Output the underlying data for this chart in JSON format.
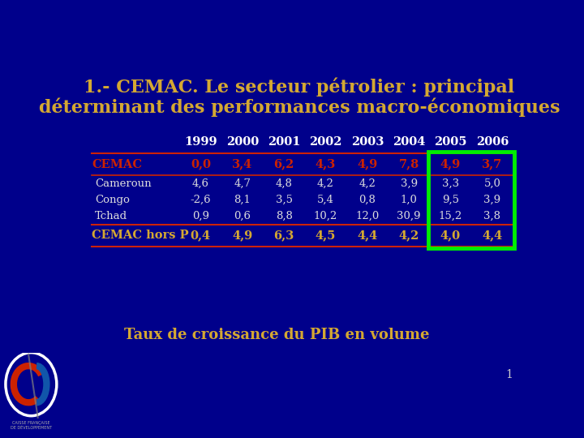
{
  "title_line1": "1.- CEMAC. Le secteur pétrolier : principal",
  "title_line2": "déterminant des performances macro-économiques",
  "title_color": "#D4A832",
  "bg_color": "#00008B",
  "subtitle": "Taux de croissance du PIB en volume",
  "subtitle_color": "#D4A832",
  "page_number": "1",
  "columns": [
    "",
    "1999",
    "2000",
    "2001",
    "2002",
    "2003",
    "2004",
    "2005",
    "2006"
  ],
  "rows": [
    {
      "label": "CEMAC",
      "values": [
        "0,0",
        "3,4",
        "6,2",
        "4,3",
        "4,9",
        "7,8",
        "4,9",
        "3,7"
      ],
      "label_color": "#CC2200",
      "value_color": "#CC2200",
      "bold": true,
      "sub": false
    },
    {
      "label": "Cameroun",
      "values": [
        "4,6",
        "4,7",
        "4,8",
        "4,2",
        "4,2",
        "3,9",
        "3,3",
        "5,0"
      ],
      "label_color": "#DDDDDD",
      "value_color": "#DDDDDD",
      "bold": false,
      "sub": true
    },
    {
      "label": "Congo",
      "values": [
        "-2,6",
        "8,1",
        "3,5",
        "5,4",
        "0,8",
        "1,0",
        "9,5",
        "3,9"
      ],
      "label_color": "#DDDDDD",
      "value_color": "#DDDDDD",
      "bold": false,
      "sub": true
    },
    {
      "label": "Tchad",
      "values": [
        "0,9",
        "0,6",
        "8,8",
        "10,2",
        "12,0",
        "30,9",
        "15,2",
        "3,8"
      ],
      "label_color": "#DDDDDD",
      "value_color": "#DDDDDD",
      "bold": false,
      "sub": true
    },
    {
      "label": "CEMAC hors P",
      "values": [
        "0,4",
        "4,9",
        "6,3",
        "4,5",
        "4,4",
        "4,2",
        "4,0",
        "4,4"
      ],
      "label_color": "#D4A832",
      "value_color": "#D4A832",
      "bold": true,
      "sub": false
    }
  ],
  "header_color": "#FFFFFF",
  "line_color": "#CC2200",
  "green_box_color": "#00EE00",
  "col_header_fontsize": 10.5,
  "row_fontsize": 10.5,
  "sub_fontsize": 9.5,
  "title_fontsize": 16
}
